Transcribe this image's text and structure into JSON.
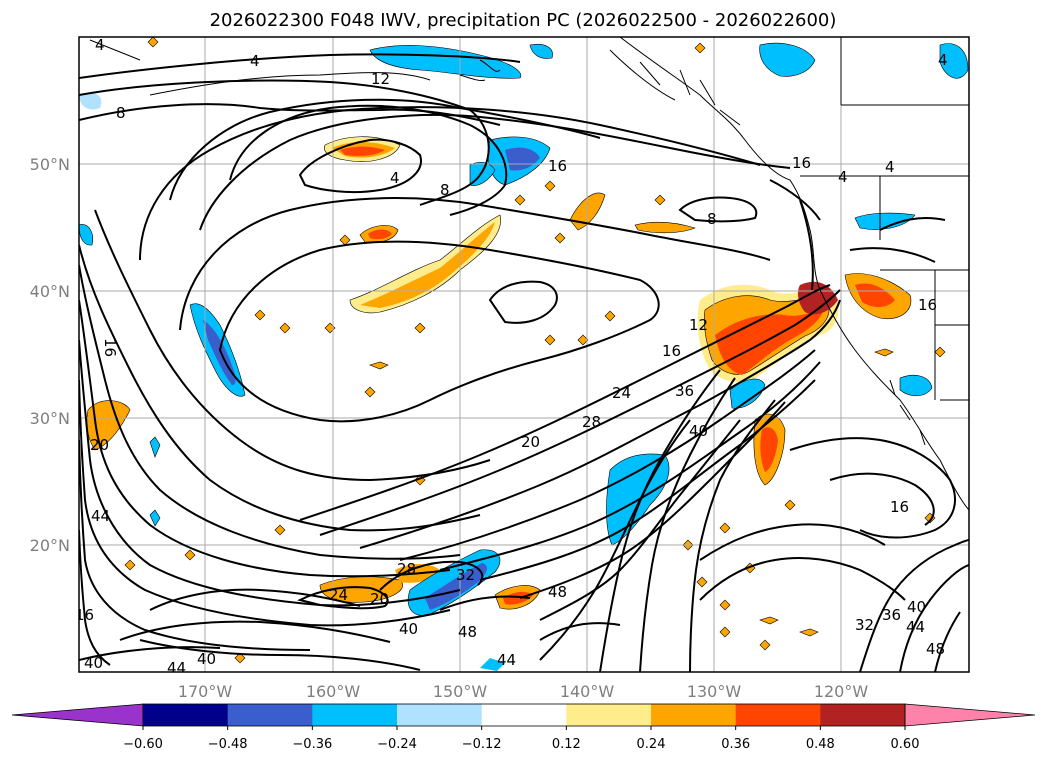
{
  "title": "2026022300 F048 IWV, precipitation PC (2026022500 - 2026022600)",
  "lat_labels": [
    "50°N",
    "40°N",
    "30°N",
    "20°N"
  ],
  "lon_labels": [
    "170°W",
    "160°W",
    "150°W",
    "140°W",
    "130°W",
    "120°W"
  ],
  "colorbar": {
    "ticks": [
      "−0.60",
      "−0.48",
      "−0.36",
      "−0.24",
      "−0.12",
      "0.12",
      "0.24",
      "0.36",
      "0.48",
      "0.60"
    ],
    "colors": [
      "#9a33cc",
      "#00008b",
      "#3a5fcd",
      "#00bfff",
      "#b0e2ff",
      "#ffffff",
      "#ffec8b",
      "#ffa500",
      "#ff4500",
      "#b22222",
      "#ff82ab"
    ]
  },
  "contour_labels": [
    "4",
    "4",
    "8",
    "12",
    "16",
    "16",
    "4",
    "8",
    "8",
    "16",
    "12",
    "16",
    "24",
    "28",
    "36",
    "40",
    "20",
    "20",
    "28",
    "24",
    "20",
    "32",
    "40",
    "48",
    "48",
    "44",
    "44",
    "40",
    "44",
    "40",
    "16",
    "32",
    "36",
    "40",
    "44",
    "48",
    "16",
    "4",
    "4",
    "4",
    "16"
  ],
  "shading_colors": {
    "light_yellow": "#ffec8b",
    "orange": "#ffa500",
    "red_orange": "#ff4500",
    "dark_red": "#b22222",
    "light_blue": "#b0e2ff",
    "deep_sky_blue": "#00bfff",
    "royal_blue": "#3a5fcd"
  }
}
